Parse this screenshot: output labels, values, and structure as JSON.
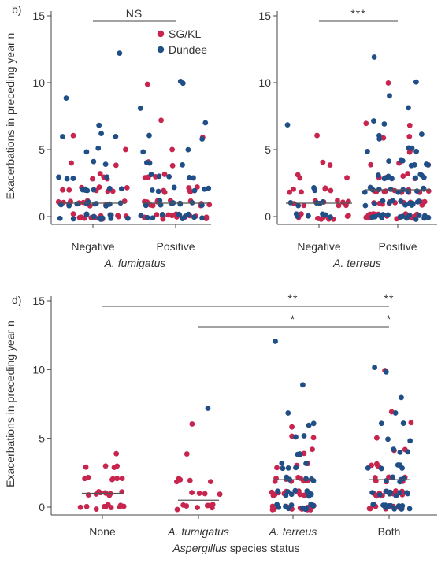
{
  "chart_data": [
    {
      "type": "scatter",
      "panel_label": "b)",
      "ylabel": "Exacerbations in preceding year n",
      "yticks": [
        "0",
        "5",
        "10",
        "15"
      ],
      "ylim": [
        -0.5,
        15.5
      ],
      "categories": [
        "Negative",
        "Positive"
      ],
      "xlabel": "A. fumigatus",
      "xlabel_italic": true,
      "medians": [
        1,
        1
      ],
      "significance": [
        {
          "from": "Negative",
          "to": "Positive",
          "label": "NS"
        }
      ],
      "legend": {
        "placement": "top-center",
        "entries": [
          {
            "name": "SG/KL",
            "color": "#c8254e"
          },
          {
            "name": "Dundee",
            "color": "#1f4f86"
          }
        ]
      },
      "series": [
        {
          "name": "SG/KL",
          "color": "#c8254e",
          "groups": [
            [
              0,
              0,
              0,
              0,
              0,
              0,
              0,
              0,
              0,
              0,
              0,
              0,
              0,
              0,
              1,
              1,
              1,
              1,
              1,
              1,
              1,
              1,
              1,
              1,
              1,
              1,
              2,
              2,
              2,
              2,
              2,
              2,
              2,
              2,
              3,
              3,
              3,
              3,
              4,
              4,
              5,
              6
            ],
            [
              0,
              0,
              0,
              0,
              0,
              0,
              0,
              0,
              0,
              0,
              0,
              0,
              0,
              0,
              1,
              1,
              1,
              1,
              1,
              1,
              1,
              1,
              1,
              1,
              1,
              2,
              2,
              2,
              2,
              2,
              2,
              2,
              3,
              3,
              3,
              3,
              4,
              4,
              5,
              6,
              7,
              10
            ]
          ]
        },
        {
          "name": "Dundee",
          "color": "#1f4f86",
          "groups": [
            [
              0,
              0,
              0,
              0,
              0,
              0,
              0,
              0,
              0,
              0,
              0,
              0,
              1,
              1,
              1,
              1,
              1,
              1,
              1,
              1,
              1,
              1,
              2,
              2,
              2,
              2,
              2,
              2,
              2,
              3,
              3,
              3,
              3,
              4,
              4,
              5,
              5,
              6,
              6,
              6,
              7,
              9,
              12
            ],
            [
              0,
              0,
              0,
              0,
              0,
              0,
              0,
              0,
              0,
              0,
              0,
              0,
              1,
              1,
              1,
              1,
              1,
              1,
              1,
              1,
              1,
              1,
              2,
              2,
              2,
              2,
              2,
              2,
              3,
              3,
              3,
              3,
              3,
              4,
              4,
              4,
              5,
              5,
              6,
              6,
              7,
              8,
              10,
              10
            ]
          ]
        }
      ]
    },
    {
      "type": "scatter",
      "panel_label": "",
      "ylabel": "",
      "yticks": [
        "0",
        "5",
        "10",
        "15"
      ],
      "ylim": [
        -0.5,
        15.5
      ],
      "categories": [
        "Negative",
        "Positive"
      ],
      "xlabel": "A. terreus",
      "xlabel_italic": true,
      "medians": [
        1,
        2
      ],
      "significance": [
        {
          "from": "Negative",
          "to": "Positive",
          "label": "***"
        }
      ],
      "series": [
        {
          "name": "SG/KL",
          "color": "#c8254e",
          "groups": [
            [
              0,
              0,
              0,
              0,
              0,
              0,
              0,
              0,
              0,
              0,
              0,
              0,
              1,
              1,
              1,
              1,
              1,
              1,
              1,
              1,
              1,
              1,
              2,
              2,
              2,
              2,
              2,
              2,
              3,
              3,
              3,
              4,
              4,
              6
            ],
            [
              0,
              0,
              0,
              0,
              0,
              0,
              0,
              0,
              0,
              0,
              0,
              0,
              0,
              0,
              0,
              0,
              1,
              1,
              1,
              1,
              1,
              1,
              1,
              1,
              1,
              1,
              1,
              1,
              2,
              2,
              2,
              2,
              2,
              2,
              2,
              2,
              2,
              2,
              3,
              3,
              3,
              3,
              3,
              3,
              4,
              4,
              4,
              5,
              5,
              6,
              6,
              7,
              7,
              10
            ]
          ]
        },
        {
          "name": "Dundee",
          "color": "#1f4f86",
          "groups": [
            [
              0,
              0,
              0,
              0,
              0,
              0,
              1,
              1,
              1,
              1,
              1,
              2,
              2,
              7
            ],
            [
              0,
              0,
              0,
              0,
              0,
              0,
              0,
              0,
              0,
              0,
              0,
              0,
              0,
              0,
              0,
              1,
              1,
              1,
              1,
              1,
              1,
              1,
              1,
              1,
              1,
              1,
              1,
              1,
              2,
              2,
              2,
              2,
              2,
              2,
              2,
              2,
              2,
              2,
              2,
              3,
              3,
              3,
              3,
              3,
              3,
              3,
              3,
              3,
              4,
              4,
              4,
              4,
              4,
              4,
              4,
              5,
              5,
              5,
              5,
              6,
              6,
              6,
              7,
              7,
              8,
              9,
              10,
              12
            ]
          ]
        }
      ]
    },
    {
      "type": "scatter",
      "panel_label": "d)",
      "ylabel": "Exacerbations in preceding year n",
      "yticks": [
        "0",
        "5",
        "10",
        "15"
      ],
      "ylim": [
        -0.5,
        15.5
      ],
      "categories": [
        "None",
        "A. fumigatus",
        "A. terreus",
        "Both"
      ],
      "category_italic": [
        false,
        true,
        true,
        false
      ],
      "xlabel_parts": [
        {
          "text": "Aspergillus",
          "italic": true
        },
        {
          "text": " species status",
          "italic": false
        }
      ],
      "medians": [
        1,
        0.5,
        2,
        2
      ],
      "significance": [
        {
          "from": "None",
          "to": "A. terreus",
          "label": "**"
        },
        {
          "from": "None",
          "to": "Both",
          "label": "**"
        },
        {
          "from": "A. fumigatus",
          "to": "A. terreus",
          "label": "*"
        },
        {
          "from": "A. fumigatus",
          "to": "Both",
          "label": "*"
        }
      ],
      "series": [
        {
          "name": "SG/KL",
          "color": "#c8254e",
          "groups": [
            [
              0,
              0,
              0,
              0,
              0,
              0,
              0,
              0,
              0,
              0,
              1,
              1,
              1,
              1,
              1,
              1,
              1,
              1,
              1,
              2,
              2,
              2,
              2,
              2,
              2,
              3,
              3,
              3,
              3,
              4
            ],
            [
              0,
              0,
              0,
              0,
              0,
              0,
              0,
              0,
              1,
              1,
              1,
              1,
              2,
              2,
              2,
              2,
              2,
              4,
              6
            ],
            [
              0,
              0,
              0,
              0,
              0,
              0,
              0,
              0,
              0,
              0,
              0,
              0,
              0,
              0,
              1,
              1,
              1,
              1,
              1,
              1,
              1,
              1,
              1,
              1,
              2,
              2,
              2,
              2,
              2,
              2,
              2,
              2,
              3,
              3,
              3,
              3,
              4,
              4,
              5,
              5,
              6
            ],
            [
              0,
              0,
              0,
              0,
              0,
              0,
              0,
              0,
              0,
              0,
              0,
              0,
              1,
              1,
              1,
              1,
              1,
              1,
              1,
              1,
              1,
              2,
              2,
              2,
              2,
              2,
              2,
              3,
              3,
              3,
              3,
              4,
              4,
              5,
              6,
              7,
              10
            ]
          ]
        },
        {
          "name": "Dundee",
          "color": "#1f4f86",
          "groups": [
            [],
            [
              7
            ],
            [
              0,
              0,
              0,
              0,
              0,
              0,
              0,
              0,
              0,
              0,
              0,
              1,
              1,
              1,
              1,
              1,
              1,
              1,
              1,
              1,
              2,
              2,
              2,
              2,
              2,
              2,
              3,
              3,
              3,
              3,
              3,
              4,
              4,
              4,
              5,
              5,
              6,
              6,
              7,
              9,
              12
            ],
            [
              0,
              0,
              0,
              0,
              0,
              0,
              0,
              0,
              0,
              0,
              0,
              1,
              1,
              1,
              1,
              1,
              1,
              1,
              1,
              1,
              1,
              2,
              2,
              2,
              2,
              2,
              3,
              3,
              3,
              3,
              3,
              4,
              4,
              4,
              5,
              5,
              6,
              6,
              7,
              8,
              10,
              10
            ]
          ]
        }
      ]
    }
  ]
}
